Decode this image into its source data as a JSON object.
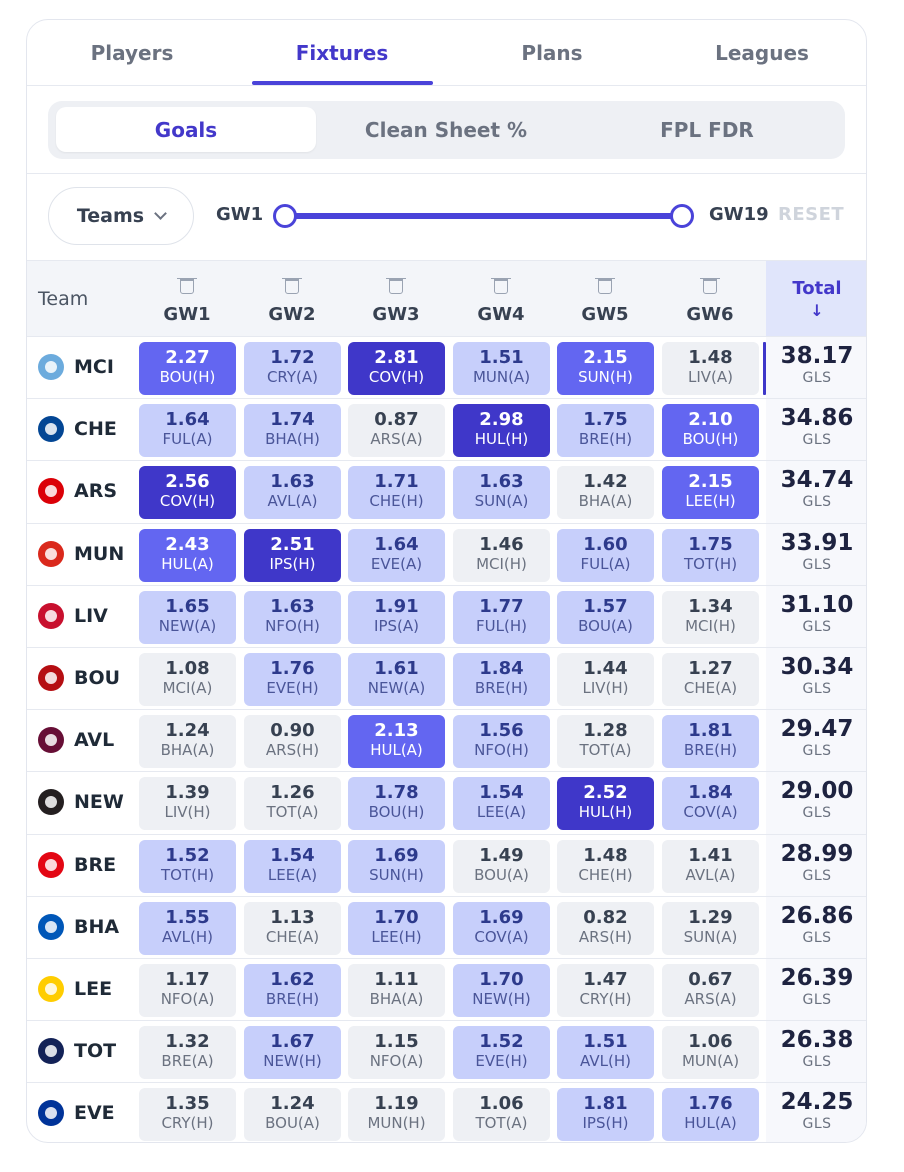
{
  "tabs": [
    "Players",
    "Fixtures",
    "Plans",
    "Leagues"
  ],
  "active_tab": 1,
  "metrics": [
    "Goals",
    "Clean Sheet %",
    "FPL FDR"
  ],
  "active_metric": 0,
  "filters": {
    "teams_label": "Teams",
    "range_start": "GW1",
    "range_end": "GW19",
    "reset_label": "RESET"
  },
  "grid": {
    "team_header": "Team",
    "gw_headers": [
      "GW1",
      "GW2",
      "GW3",
      "GW4",
      "GW5",
      "GW6"
    ],
    "total_header": "Total",
    "sort_arrow": "↓",
    "total_unit": "GLS",
    "rows": [
      {
        "team": "MCI",
        "color": "#6cabdd",
        "total": "38.17",
        "fixtures": [
          {
            "v": "2.27",
            "o": "BOU(H)",
            "l": 2
          },
          {
            "v": "1.72",
            "o": "CRY(A)",
            "l": 1
          },
          {
            "v": "2.81",
            "o": "COV(H)",
            "l": 3
          },
          {
            "v": "1.51",
            "o": "MUN(A)",
            "l": 1
          },
          {
            "v": "2.15",
            "o": "SUN(H)",
            "l": 2
          },
          {
            "v": "1.48",
            "o": "LIV(A)",
            "l": 0
          }
        ]
      },
      {
        "team": "CHE",
        "color": "#034694",
        "total": "34.86",
        "fixtures": [
          {
            "v": "1.64",
            "o": "FUL(A)",
            "l": 1
          },
          {
            "v": "1.74",
            "o": "BHA(H)",
            "l": 1
          },
          {
            "v": "0.87",
            "o": "ARS(A)",
            "l": 0
          },
          {
            "v": "2.98",
            "o": "HUL(H)",
            "l": 3
          },
          {
            "v": "1.75",
            "o": "BRE(H)",
            "l": 1
          },
          {
            "v": "2.10",
            "o": "BOU(H)",
            "l": 2
          }
        ]
      },
      {
        "team": "ARS",
        "color": "#db0007",
        "total": "34.74",
        "fixtures": [
          {
            "v": "2.56",
            "o": "COV(H)",
            "l": 3
          },
          {
            "v": "1.63",
            "o": "AVL(A)",
            "l": 1
          },
          {
            "v": "1.71",
            "o": "CHE(H)",
            "l": 1
          },
          {
            "v": "1.63",
            "o": "SUN(A)",
            "l": 1
          },
          {
            "v": "1.42",
            "o": "BHA(A)",
            "l": 0
          },
          {
            "v": "2.15",
            "o": "LEE(H)",
            "l": 2
          }
        ]
      },
      {
        "team": "MUN",
        "color": "#da291c",
        "total": "33.91",
        "fixtures": [
          {
            "v": "2.43",
            "o": "HUL(A)",
            "l": 2
          },
          {
            "v": "2.51",
            "o": "IPS(H)",
            "l": 3
          },
          {
            "v": "1.64",
            "o": "EVE(A)",
            "l": 1
          },
          {
            "v": "1.46",
            "o": "MCI(H)",
            "l": 0
          },
          {
            "v": "1.60",
            "o": "FUL(A)",
            "l": 1
          },
          {
            "v": "1.75",
            "o": "TOT(H)",
            "l": 1
          }
        ]
      },
      {
        "team": "LIV",
        "color": "#c8102e",
        "total": "31.10",
        "fixtures": [
          {
            "v": "1.65",
            "o": "NEW(A)",
            "l": 1
          },
          {
            "v": "1.63",
            "o": "NFO(H)",
            "l": 1
          },
          {
            "v": "1.91",
            "o": "IPS(A)",
            "l": 1
          },
          {
            "v": "1.77",
            "o": "FUL(H)",
            "l": 1
          },
          {
            "v": "1.57",
            "o": "BOU(A)",
            "l": 1
          },
          {
            "v": "1.34",
            "o": "MCI(H)",
            "l": 0
          }
        ]
      },
      {
        "team": "BOU",
        "color": "#b50e12",
        "total": "30.34",
        "fixtures": [
          {
            "v": "1.08",
            "o": "MCI(A)",
            "l": 0
          },
          {
            "v": "1.76",
            "o": "EVE(H)",
            "l": 1
          },
          {
            "v": "1.61",
            "o": "NEW(A)",
            "l": 1
          },
          {
            "v": "1.84",
            "o": "BRE(H)",
            "l": 1
          },
          {
            "v": "1.44",
            "o": "LIV(H)",
            "l": 0
          },
          {
            "v": "1.27",
            "o": "CHE(A)",
            "l": 0
          }
        ]
      },
      {
        "team": "AVL",
        "color": "#670e36",
        "total": "29.47",
        "fixtures": [
          {
            "v": "1.24",
            "o": "BHA(A)",
            "l": 0
          },
          {
            "v": "0.90",
            "o": "ARS(H)",
            "l": 0
          },
          {
            "v": "2.13",
            "o": "HUL(A)",
            "l": 2
          },
          {
            "v": "1.56",
            "o": "NFO(H)",
            "l": 1
          },
          {
            "v": "1.28",
            "o": "TOT(A)",
            "l": 0
          },
          {
            "v": "1.81",
            "o": "BRE(H)",
            "l": 1
          }
        ]
      },
      {
        "team": "NEW",
        "color": "#241f20",
        "total": "29.00",
        "fixtures": [
          {
            "v": "1.39",
            "o": "LIV(H)",
            "l": 0
          },
          {
            "v": "1.26",
            "o": "TOT(A)",
            "l": 0
          },
          {
            "v": "1.78",
            "o": "BOU(H)",
            "l": 1
          },
          {
            "v": "1.54",
            "o": "LEE(A)",
            "l": 1
          },
          {
            "v": "2.52",
            "o": "HUL(H)",
            "l": 3
          },
          {
            "v": "1.84",
            "o": "COV(A)",
            "l": 1
          }
        ]
      },
      {
        "team": "BRE",
        "color": "#e30613",
        "total": "28.99",
        "fixtures": [
          {
            "v": "1.52",
            "o": "TOT(H)",
            "l": 1
          },
          {
            "v": "1.54",
            "o": "LEE(A)",
            "l": 1
          },
          {
            "v": "1.69",
            "o": "SUN(H)",
            "l": 1
          },
          {
            "v": "1.49",
            "o": "BOU(A)",
            "l": 0
          },
          {
            "v": "1.48",
            "o": "CHE(H)",
            "l": 0
          },
          {
            "v": "1.41",
            "o": "AVL(A)",
            "l": 0
          }
        ]
      },
      {
        "team": "BHA",
        "color": "#0057b8",
        "total": "26.86",
        "fixtures": [
          {
            "v": "1.55",
            "o": "AVL(H)",
            "l": 1
          },
          {
            "v": "1.13",
            "o": "CHE(A)",
            "l": 0
          },
          {
            "v": "1.70",
            "o": "LEE(H)",
            "l": 1
          },
          {
            "v": "1.69",
            "o": "COV(A)",
            "l": 1
          },
          {
            "v": "0.82",
            "o": "ARS(H)",
            "l": 0
          },
          {
            "v": "1.29",
            "o": "SUN(A)",
            "l": 0
          }
        ]
      },
      {
        "team": "LEE",
        "color": "#ffcd00",
        "total": "26.39",
        "fixtures": [
          {
            "v": "1.17",
            "o": "NFO(A)",
            "l": 0
          },
          {
            "v": "1.62",
            "o": "BRE(H)",
            "l": 1
          },
          {
            "v": "1.11",
            "o": "BHA(A)",
            "l": 0
          },
          {
            "v": "1.70",
            "o": "NEW(H)",
            "l": 1
          },
          {
            "v": "1.47",
            "o": "CRY(H)",
            "l": 0
          },
          {
            "v": "0.67",
            "o": "ARS(A)",
            "l": 0
          }
        ]
      },
      {
        "team": "TOT",
        "color": "#132257",
        "total": "26.38",
        "fixtures": [
          {
            "v": "1.32",
            "o": "BRE(A)",
            "l": 0
          },
          {
            "v": "1.67",
            "o": "NEW(H)",
            "l": 1
          },
          {
            "v": "1.15",
            "o": "NFO(A)",
            "l": 0
          },
          {
            "v": "1.52",
            "o": "EVE(H)",
            "l": 1
          },
          {
            "v": "1.51",
            "o": "AVL(H)",
            "l": 1
          },
          {
            "v": "1.06",
            "o": "MUN(A)",
            "l": 0
          }
        ]
      },
      {
        "team": "EVE",
        "color": "#003399",
        "total": "24.25",
        "fixtures": [
          {
            "v": "1.35",
            "o": "CRY(H)",
            "l": 0
          },
          {
            "v": "1.24",
            "o": "BOU(A)",
            "l": 0
          },
          {
            "v": "1.19",
            "o": "MUN(H)",
            "l": 0
          },
          {
            "v": "1.06",
            "o": "TOT(A)",
            "l": 0
          },
          {
            "v": "1.81",
            "o": "IPS(H)",
            "l": 1
          },
          {
            "v": "1.76",
            "o": "HUL(A)",
            "l": 1
          }
        ]
      }
    ]
  }
}
